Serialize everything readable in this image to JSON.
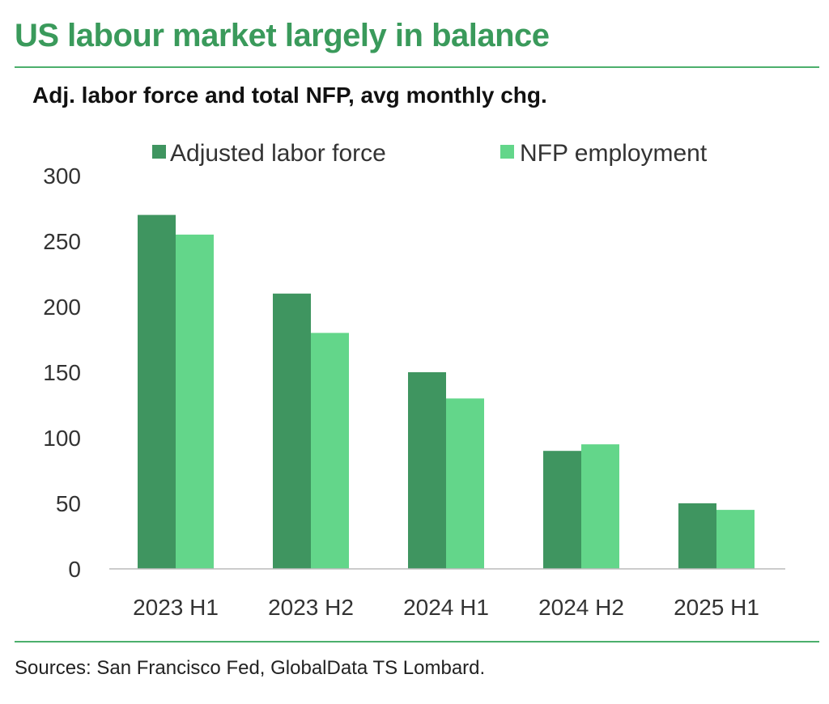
{
  "header": {
    "title": "US labour market largely in balance",
    "subtitle": "Adj. labor force and total NFP, avg monthly chg."
  },
  "footer": {
    "source": "Sources: San Francisco Fed, GlobalData TS Lombard."
  },
  "colors": {
    "title": "#3a9a5b",
    "rule": "#4caf6c",
    "series_dark": "#3f9560",
    "series_light": "#63d68a"
  },
  "chart_data": {
    "type": "bar",
    "title": "Adj. labor force and total NFP, avg monthly chg.",
    "xlabel": "",
    "ylabel": "",
    "categories": [
      "2023 H1",
      "2023 H2",
      "2024 H1",
      "2024 H2",
      "2025 H1"
    ],
    "series": [
      {
        "name": "Adjusted labor force",
        "values": [
          270,
          210,
          150,
          90,
          50
        ]
      },
      {
        "name": "NFP employment",
        "values": [
          255,
          180,
          130,
          95,
          45
        ]
      }
    ],
    "ylim": [
      0,
      300
    ],
    "yticks": [
      "0",
      "50",
      "100",
      "150",
      "200",
      "250",
      "300"
    ],
    "legend": "top",
    "grid": false
  }
}
